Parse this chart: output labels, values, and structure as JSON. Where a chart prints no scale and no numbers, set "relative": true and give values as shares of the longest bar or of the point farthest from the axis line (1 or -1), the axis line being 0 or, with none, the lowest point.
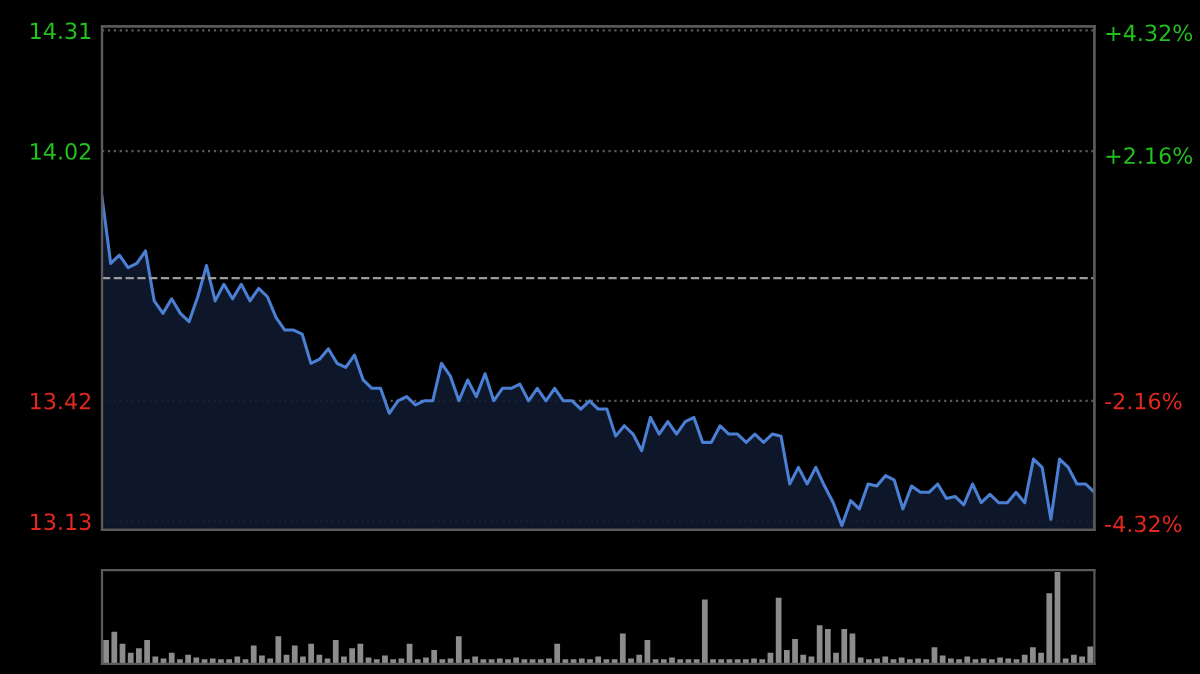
{
  "chart_data": [
    {
      "type": "area",
      "categories": [
        null,
        null,
        null,
        null,
        null,
        null,
        null,
        null,
        null,
        null,
        null,
        null,
        null,
        null,
        null,
        null,
        null,
        null,
        null,
        null,
        null,
        null,
        null,
        null,
        null,
        null,
        null,
        null,
        null,
        null,
        null,
        null,
        null,
        null,
        null,
        null,
        null,
        null,
        null,
        null,
        null,
        null,
        null,
        null,
        null,
        null,
        null,
        null,
        null,
        null,
        null,
        null,
        null,
        null,
        null,
        null,
        null,
        null,
        null,
        null,
        null,
        null,
        null,
        null,
        null,
        null,
        null,
        null,
        null,
        null,
        null,
        null,
        null,
        null,
        null,
        null,
        null,
        null,
        null,
        null,
        null,
        null,
        null,
        null,
        null,
        null,
        null,
        null,
        null,
        null,
        null,
        null,
        null,
        null,
        null,
        null,
        null,
        null,
        null,
        null,
        null,
        null,
        null,
        null,
        null,
        null,
        null,
        null,
        null,
        null,
        null,
        null,
        null,
        null,
        null
      ],
      "series": [
        {
          "color": "#4a7fd4",
          "values": [
            13.91,
            13.75,
            13.77,
            13.74,
            13.75,
            13.78,
            13.66,
            13.63,
            13.665,
            13.63,
            13.61,
            13.67,
            13.745,
            13.66,
            13.7,
            13.665,
            13.7,
            13.66,
            13.69,
            13.67,
            13.62,
            13.59,
            13.59,
            13.58,
            13.51,
            13.52,
            13.545,
            13.51,
            13.5,
            13.53,
            13.47,
            13.45,
            13.45,
            13.39,
            13.42,
            13.43,
            13.41,
            13.42,
            13.42,
            13.51,
            13.48,
            13.42,
            13.47,
            13.43,
            13.485,
            13.42,
            13.45,
            13.45,
            13.46,
            13.42,
            13.45,
            13.42,
            13.45,
            13.42,
            13.42,
            13.4,
            13.42,
            13.4,
            13.4,
            13.335,
            13.36,
            13.34,
            13.3,
            13.38,
            13.34,
            13.37,
            13.34,
            13.37,
            13.38,
            13.32,
            13.32,
            13.36,
            13.34,
            13.34,
            13.32,
            13.34,
            13.32,
            13.34,
            13.335,
            13.22,
            13.26,
            13.22,
            13.26,
            13.215,
            13.175,
            13.12,
            13.18,
            13.16,
            13.22,
            13.215,
            13.24,
            13.23,
            13.16,
            13.215,
            13.2,
            13.2,
            13.22,
            13.185,
            13.19,
            13.17,
            13.22,
            13.175,
            13.195,
            13.175,
            13.175,
            13.2,
            13.175,
            13.28,
            13.26,
            13.135,
            13.28,
            13.26,
            13.22,
            13.22,
            13.2
          ]
        }
      ],
      "ylim": [
        13.11,
        14.32
      ],
      "yticks": [
        13.13,
        13.42,
        14.02,
        14.31
      ],
      "y2lim": [
        -4.43,
        4.43
      ],
      "y2ticks": [
        {
          "value": -4.32,
          "label": "-4.32%"
        },
        {
          "value": -2.16,
          "label": "-2.16%"
        },
        {
          "value": 2.16,
          "label": "+2.16%"
        },
        {
          "value": 4.32,
          "label": "+4.32%"
        }
      ],
      "ref_lines": [
        {
          "axis": "y",
          "value": 13.715,
          "line_style": "dashed",
          "color": "#9a9a9a"
        }
      ],
      "grid": "y"
    },
    {
      "type": "bar",
      "relative": true,
      "categories": [
        null,
        null,
        null,
        null,
        null,
        null,
        null,
        null,
        null,
        null,
        null,
        null,
        null,
        null,
        null,
        null,
        null,
        null,
        null,
        null,
        null,
        null,
        null,
        null,
        null,
        null,
        null,
        null,
        null,
        null,
        null,
        null,
        null,
        null,
        null,
        null,
        null,
        null,
        null,
        null,
        null,
        null,
        null,
        null,
        null,
        null,
        null,
        null,
        null,
        null,
        null,
        null,
        null,
        null,
        null,
        null,
        null,
        null,
        null,
        null,
        null,
        null,
        null,
        null,
        null,
        null,
        null,
        null,
        null,
        null,
        null,
        null,
        null,
        null,
        null,
        null,
        null,
        null,
        null,
        null,
        null,
        null,
        null,
        null,
        null,
        null,
        null,
        null,
        null,
        null,
        null,
        null,
        null,
        null,
        null,
        null,
        null,
        null,
        null,
        null,
        null,
        null,
        null,
        null,
        null,
        null,
        null,
        null,
        null,
        null,
        null,
        null,
        null,
        null,
        null,
        null,
        null,
        null,
        null,
        null,
        null
      ],
      "series": [
        {
          "color": "#8c8c8c",
          "values": [
            0.26,
            0.35,
            0.22,
            0.12,
            0.17,
            0.26,
            0.08,
            0.06,
            0.12,
            0.05,
            0.1,
            0.07,
            0.05,
            0.06,
            0.05,
            0.05,
            0.08,
            0.05,
            0.2,
            0.09,
            0.06,
            0.3,
            0.1,
            0.2,
            0.08,
            0.22,
            0.1,
            0.06,
            0.26,
            0.08,
            0.17,
            0.22,
            0.07,
            0.05,
            0.09,
            0.05,
            0.06,
            0.22,
            0.05,
            0.07,
            0.15,
            0.05,
            0.06,
            0.3,
            0.05,
            0.08,
            0.05,
            0.05,
            0.06,
            0.05,
            0.07,
            0.05,
            0.05,
            0.05,
            0.06,
            0.22,
            0.05,
            0.05,
            0.06,
            0.05,
            0.08,
            0.05,
            0.05,
            0.33,
            0.06,
            0.1,
            0.26,
            0.05,
            0.05,
            0.07,
            0.05,
            0.05,
            0.05,
            0.7,
            0.05,
            0.05,
            0.05,
            0.05,
            0.05,
            0.06,
            0.05,
            0.12,
            0.72,
            0.15,
            0.27,
            0.1,
            0.08,
            0.42,
            0.38,
            0.12,
            0.38,
            0.33,
            0.07,
            0.05,
            0.06,
            0.08,
            0.05,
            0.07,
            0.05,
            0.06,
            0.05,
            0.18,
            0.09,
            0.06,
            0.05,
            0.08,
            0.05,
            0.06,
            0.05,
            0.07,
            0.06,
            0.05,
            0.1,
            0.18,
            0.12,
            0.77,
            1.0,
            0.06,
            0.1,
            0.08,
            0.19
          ]
        }
      ]
    }
  ]
}
